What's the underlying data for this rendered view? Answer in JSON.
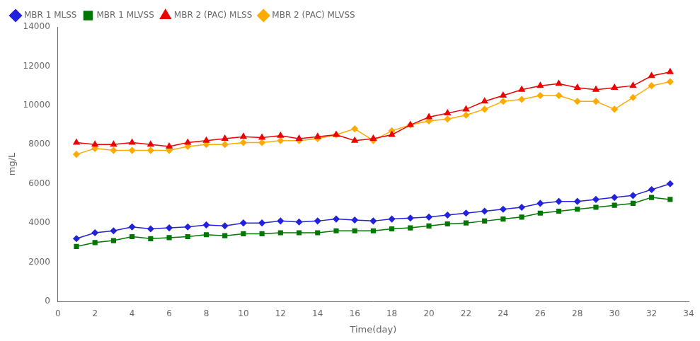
{
  "chart_data": {
    "type": "line",
    "x": [
      1,
      2,
      3,
      4,
      5,
      6,
      7,
      8,
      9,
      10,
      11,
      12,
      13,
      14,
      15,
      16,
      17,
      18,
      19,
      20,
      21,
      22,
      23,
      24,
      25,
      26,
      27,
      28,
      29,
      30,
      31,
      32,
      33
    ],
    "series": [
      {
        "name": "MBR 1 MLSS",
        "color": "#2222dd",
        "marker": "diamond",
        "values": [
          3200,
          3500,
          3600,
          3800,
          3700,
          3750,
          3800,
          3900,
          3850,
          4000,
          4000,
          4100,
          4050,
          4100,
          4200,
          4150,
          4100,
          4200,
          4250,
          4300,
          4400,
          4500,
          4600,
          4700,
          4800,
          5000,
          5100,
          5100,
          5200,
          5300,
          5400,
          5700,
          6000
        ]
      },
      {
        "name": "MBR 1 MLVSS",
        "color": "#007700",
        "marker": "square",
        "values": [
          2800,
          3000,
          3100,
          3300,
          3200,
          3250,
          3300,
          3400,
          3350,
          3450,
          3450,
          3500,
          3500,
          3500,
          3600,
          3600,
          3600,
          3700,
          3750,
          3850,
          3950,
          4000,
          4100,
          4200,
          4300,
          4500,
          4600,
          4700,
          4800,
          4900,
          5000,
          5300,
          5200
        ]
      },
      {
        "name": "MBR 2 (PAC) MLSS",
        "color": "#ee0000",
        "marker": "triangle",
        "values": [
          8100,
          8000,
          8000,
          8100,
          8000,
          7900,
          8100,
          8200,
          8300,
          8400,
          8350,
          8450,
          8300,
          8400,
          8500,
          8200,
          8300,
          8500,
          9000,
          9400,
          9600,
          9800,
          10200,
          10500,
          10800,
          11000,
          11100,
          10900,
          10800,
          10900,
          11000,
          11500,
          11700
        ]
      },
      {
        "name": "MBR 2 (PAC) MLVSS",
        "color": "#ffaa00",
        "marker": "diamond",
        "values": [
          7500,
          7800,
          7700,
          7700,
          7700,
          7700,
          7900,
          8000,
          8000,
          8100,
          8100,
          8200,
          8200,
          8300,
          8500,
          8800,
          8200,
          8700,
          9000,
          9200,
          9300,
          9500,
          9800,
          10200,
          10300,
          10500,
          10500,
          10200,
          10200,
          9800,
          10400,
          11000,
          11200
        ]
      }
    ],
    "xlabel": "Time(day)",
    "ylabel": "mg/L",
    "xlim": [
      0,
      34
    ],
    "xticks": [
      0,
      2,
      4,
      6,
      8,
      10,
      12,
      14,
      16,
      18,
      20,
      22,
      24,
      26,
      28,
      30,
      32,
      34
    ],
    "ylim": [
      0,
      14000
    ],
    "yticks": [
      0,
      2000,
      4000,
      6000,
      8000,
      10000,
      12000,
      14000
    ],
    "grid": false,
    "legend": "upper left"
  }
}
